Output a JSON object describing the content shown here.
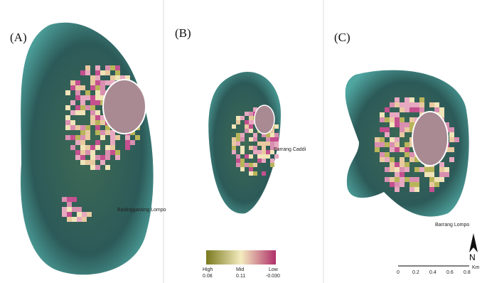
{
  "panels": [
    {
      "label": "(A)",
      "place": "Badinggaraing Lompo"
    },
    {
      "label": "(B)",
      "place": "Barrang Caddi"
    },
    {
      "label": "(C)",
      "place": "Barrang Lompo"
    }
  ],
  "legend": {
    "classes": [
      "High",
      "Mid",
      "Low"
    ],
    "values": [
      "0.08",
      "0.11",
      "-0.030"
    ]
  },
  "scale": {
    "ticks": [
      "0",
      "0.2",
      "0.4",
      "0.6",
      "0.8"
    ],
    "unit": "Km"
  },
  "north": "N"
}
